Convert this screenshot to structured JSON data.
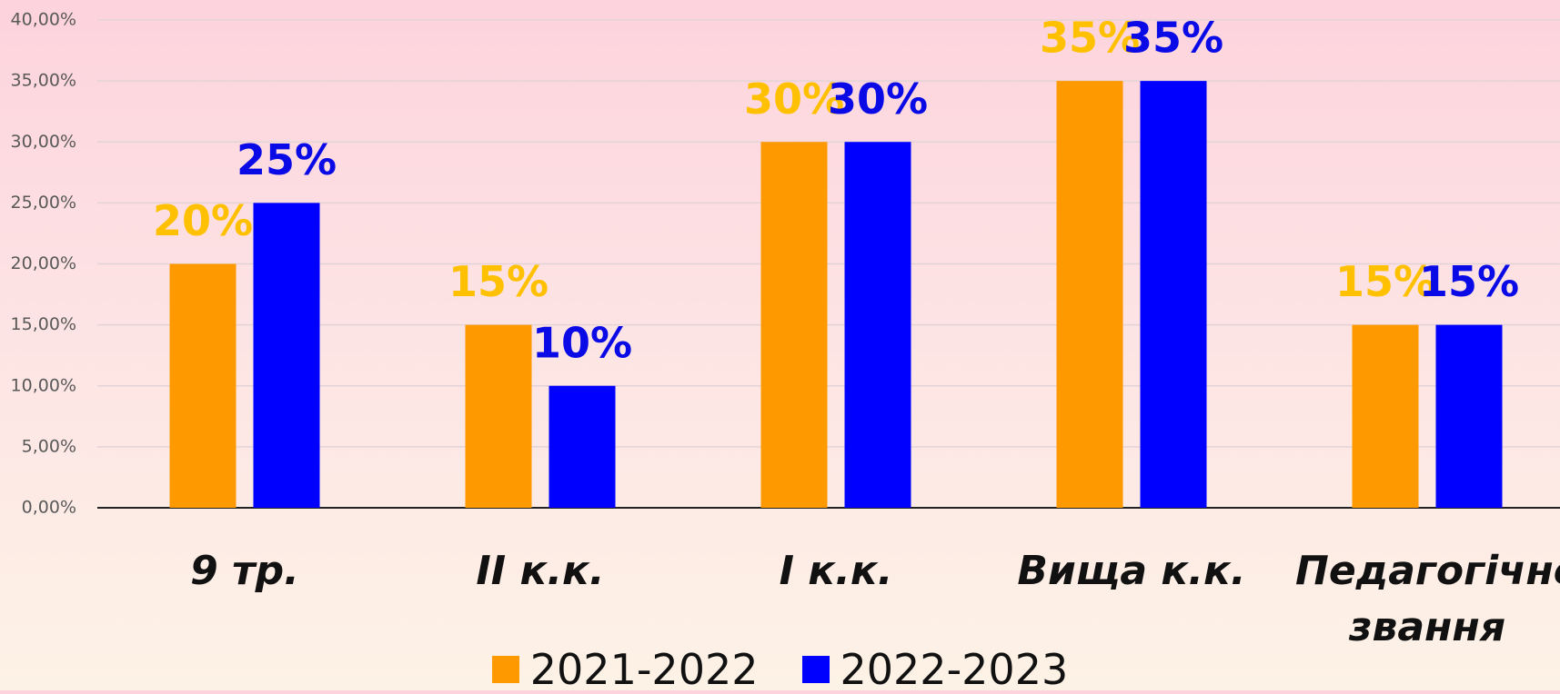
{
  "chart_data": {
    "type": "bar",
    "categories": [
      "9 тр.",
      "II к.к.",
      "I к.к.",
      "Вища к.к.",
      "Педагогічне звання"
    ],
    "series": [
      {
        "name": "2021-2022",
        "color": "#ff9900",
        "label_color": "#ffc000",
        "values": [
          20,
          15,
          30,
          35,
          15
        ],
        "value_labels": [
          "20%",
          "15%",
          "30%",
          "35%",
          "15%"
        ]
      },
      {
        "name": "2022-2023",
        "color": "#0000ff",
        "label_color": "#0a0ae6",
        "values": [
          25,
          10,
          30,
          35,
          15
        ],
        "value_labels": [
          "25%",
          "10%",
          "30%",
          "35%",
          "15%"
        ]
      }
    ],
    "ylim": [
      0,
      40
    ],
    "yticks": [
      {
        "value": 0,
        "label": "0,00%"
      },
      {
        "value": 5,
        "label": "5,00%"
      },
      {
        "value": 10,
        "label": "10,00%"
      },
      {
        "value": 15,
        "label": "15,00%"
      },
      {
        "value": 20,
        "label": "20,00%"
      },
      {
        "value": 25,
        "label": "25,00%"
      },
      {
        "value": 30,
        "label": "30,00%"
      },
      {
        "value": 35,
        "label": "35,00%"
      },
      {
        "value": 40,
        "label": "40,00%"
      }
    ],
    "grid": true,
    "legend": "bottom"
  }
}
